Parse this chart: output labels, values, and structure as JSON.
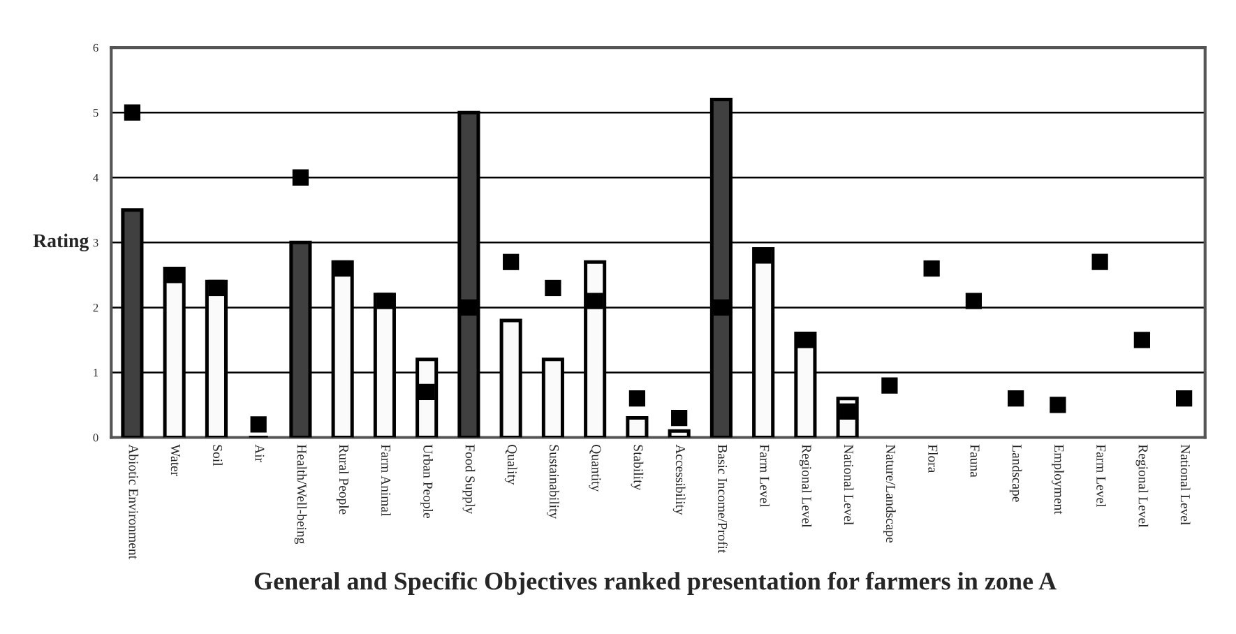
{
  "chart_data": {
    "type": "bar",
    "title": "General and Specific Objectives ranked presentation for farmers in zone A",
    "ylabel": "Rating",
    "categories": [
      "Abiotic Environment",
      "Water",
      "Soil",
      "Air",
      "Health/Well-being",
      "Rural People",
      "Farm Animal",
      "Urban People",
      "Food Supply",
      "Quality",
      "Sustainability",
      "Quantity",
      "Stability",
      "Accessibility",
      "Basic Income/Profit",
      "Farm Level",
      "Regional Level",
      "National Level",
      "Nature/Landscape",
      "Flora",
      "Fauna",
      "Landscape",
      "Employment",
      "Farm Level",
      "Regional Level",
      "National Level"
    ],
    "series": [
      {
        "values": [
          3.5,
          2.6,
          2.4,
          0,
          3.0,
          2.7,
          2.2,
          1.2,
          5.0,
          1.8,
          1.2,
          2.7,
          0.3,
          0.1,
          5.2,
          2.9,
          1.6,
          0.6,
          null,
          null,
          null,
          null,
          null,
          null,
          null,
          null
        ],
        "colors": [
          "#404040",
          "#fafafa",
          "#fafafa",
          "#000000",
          "#404040",
          "#fafafa",
          "#fafafa",
          "#fafafa",
          "#404040",
          "#fafafa",
          "#fafafa",
          "#fafafa",
          "#fafafa",
          "#fafafa",
          "#404040",
          "#fafafa",
          "#fafafa",
          "#fafafa",
          "#fafafa",
          "#fafafa",
          "#fafafa",
          "#fafafa",
          "#fafafa",
          "#fafafa",
          "#fafafa",
          "#fafafa"
        ]
      },
      {
        "type": "scatter",
        "marker": "square",
        "color": "#000000",
        "values": [
          5.0,
          2.5,
          2.3,
          0.2,
          4.0,
          2.6,
          2.1,
          0.7,
          2.0,
          2.7,
          2.3,
          2.1,
          0.6,
          0.3,
          2.0,
          2.8,
          1.5,
          0.4,
          0.8,
          2.6,
          2.1,
          0.6,
          0.5,
          2.7,
          1.5,
          0.6
        ]
      }
    ],
    "ylim": [
      0,
      6
    ],
    "yticks": [
      0,
      1,
      2,
      3,
      4,
      5,
      6
    ],
    "grid": "y",
    "legend": false
  }
}
